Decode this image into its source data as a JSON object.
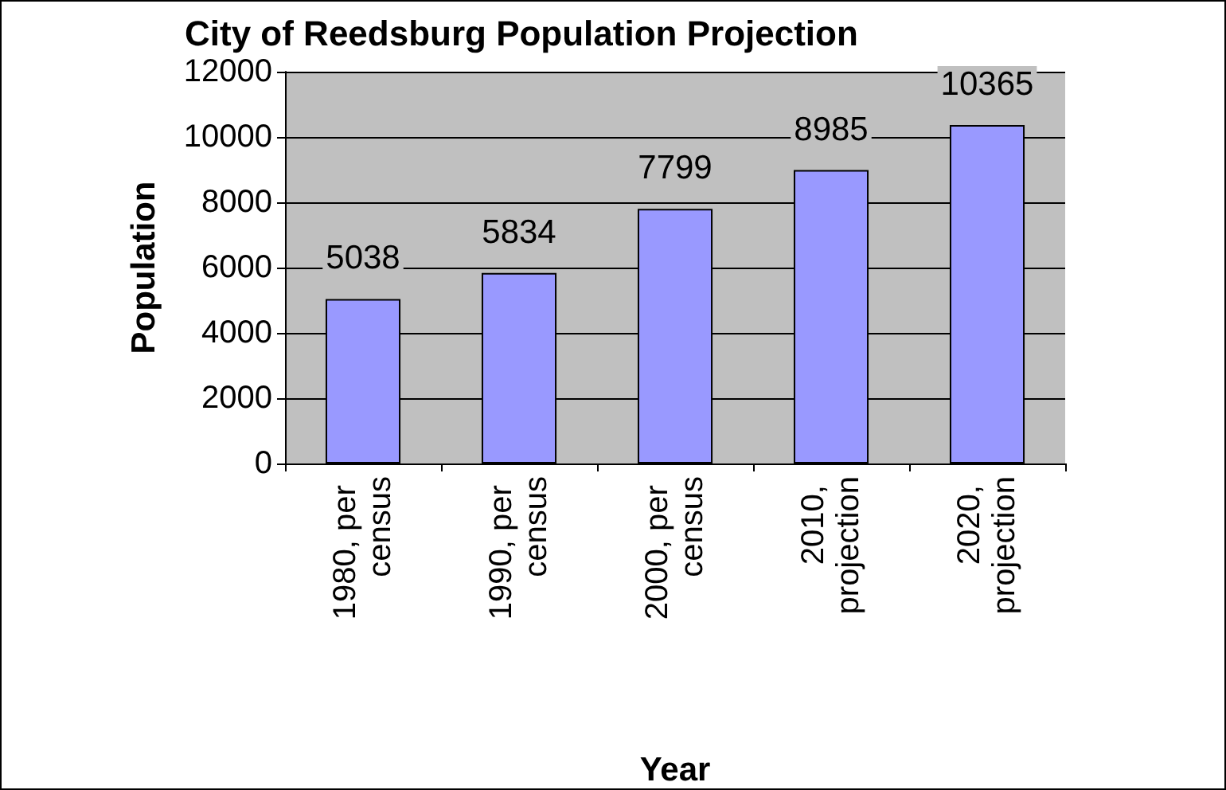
{
  "chart_data": {
    "type": "bar",
    "title": "City of Reedsburg Population Projection",
    "xlabel": "Year",
    "ylabel": "Population",
    "categories": [
      "1980, per census",
      "1990, per census",
      "2000, per census",
      "2010, projection",
      "2020, projection"
    ],
    "values": [
      5038,
      5834,
      7799,
      8985,
      10365
    ],
    "color": "#9999ff",
    "ylim": [
      0,
      12000
    ],
    "yticks": [
      0,
      2000,
      4000,
      6000,
      8000,
      10000,
      12000
    ],
    "grid": "y",
    "data_labels": true
  }
}
